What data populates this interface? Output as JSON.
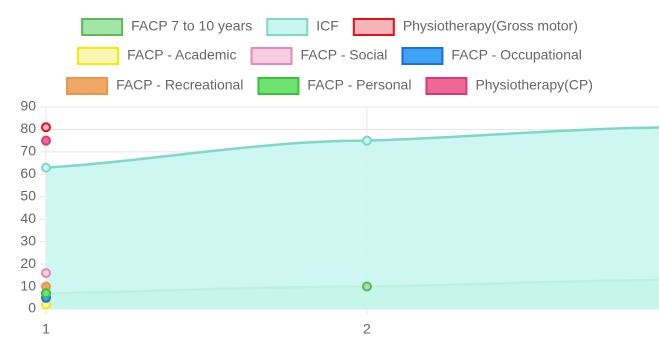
{
  "chart_data": {
    "type": "area",
    "x": [
      1,
      2,
      3
    ],
    "xlim": [
      1,
      2.91
    ],
    "xticks": [
      1,
      2
    ],
    "ylim": [
      0,
      90
    ],
    "yticks": [
      0,
      10,
      20,
      30,
      40,
      50,
      60,
      70,
      80,
      90
    ],
    "grid": true,
    "legend": "top",
    "series": [
      {
        "name": "FACP 7 to 10 years",
        "color": "#5cb85c",
        "fill": "#a3e4a7",
        "values": [
          7,
          10,
          13
        ]
      },
      {
        "name": "ICF",
        "color": "#7fd6cb",
        "fill": "#c9f6f0",
        "values": [
          63,
          75,
          81
        ]
      },
      {
        "name": "Physiotherapy(Gross motor)",
        "color": "#e3111b",
        "fill": "#f5b5b8",
        "values": [
          81,
          null,
          null
        ]
      },
      {
        "name": "FACP - Academic",
        "color": "#f7ea00",
        "fill": "#f8f6b4",
        "values": [
          2,
          null,
          null
        ]
      },
      {
        "name": "FACP - Social",
        "color": "#e28bbb",
        "fill": "#f7cde3",
        "values": [
          16,
          null,
          null
        ]
      },
      {
        "name": "FACP - Occupational",
        "color": "#1a6fd8",
        "fill": "#3ea1f1",
        "values": [
          5,
          null,
          null
        ]
      },
      {
        "name": "FACP - Recreational",
        "color": "#e9964c",
        "fill": "#f0a866",
        "values": [
          10,
          null,
          null
        ]
      },
      {
        "name": "FACP - Personal",
        "color": "#3cbf3c",
        "fill": "#6ee36e",
        "values": [
          7,
          null,
          null
        ]
      },
      {
        "name": "Physiotherapy(CP)",
        "color": "#d63b78",
        "fill": "#f06695",
        "values": [
          75,
          null,
          null
        ]
      }
    ]
  }
}
